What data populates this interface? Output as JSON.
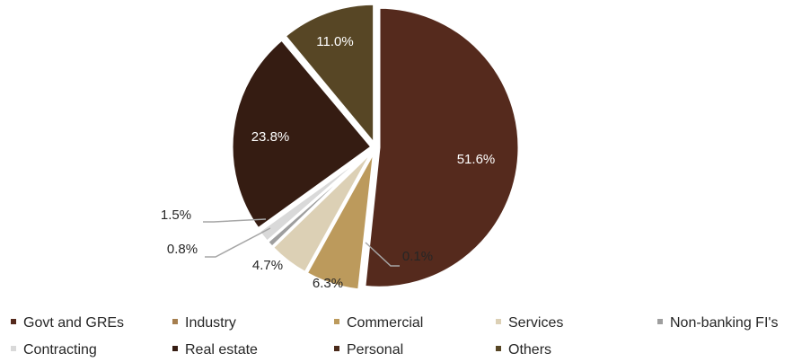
{
  "chart_data": {
    "type": "pie",
    "slices": [
      {
        "name": "Govt and GREs",
        "value": 51.6,
        "label": "51.6%",
        "color": "#552A1D"
      },
      {
        "name": "Industry",
        "value": 0.1,
        "label": "0.1%",
        "color": "#A57E4E"
      },
      {
        "name": "Commercial",
        "value": 6.3,
        "label": "6.3%",
        "color": "#BC9A5C"
      },
      {
        "name": "Services",
        "value": 4.7,
        "label": "4.7%",
        "color": "#DCD0B5"
      },
      {
        "name": "Non-banking FI's",
        "value": 0.8,
        "label": "0.8%",
        "color": "#9E9E9E"
      },
      {
        "name": "Contracting",
        "value": 1.5,
        "label": "1.5%",
        "color": "#D9D9D9"
      },
      {
        "name": "Real estate",
        "value": 23.8,
        "label": "23.8%",
        "color": "#351C12"
      },
      {
        "name": "Personal",
        "value": 0.1,
        "label": "",
        "color": "#4A2A1A"
      },
      {
        "name": "Others",
        "value": 11.0,
        "label": "11.0%",
        "color": "#574625"
      }
    ],
    "legend_placement": "bottom"
  }
}
